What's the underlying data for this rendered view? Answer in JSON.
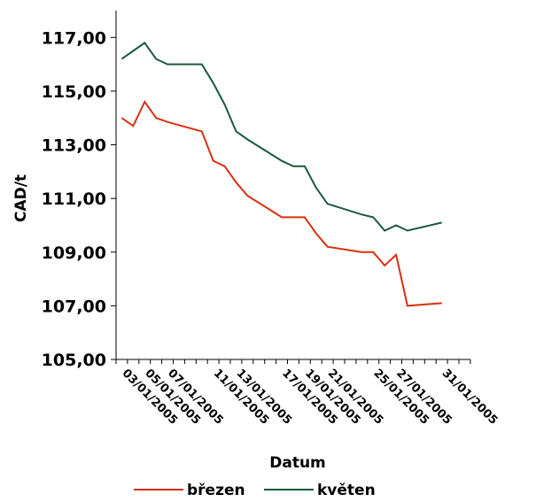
{
  "chart_data": {
    "type": "line",
    "xlabel": "Datum",
    "ylabel": "CAD/t",
    "ylim": [
      105,
      117
    ],
    "yticks": [
      "105,00",
      "107,00",
      "109,00",
      "111,00",
      "113,00",
      "115,00",
      "117,00"
    ],
    "xtick_labels": [
      "03/01/2005",
      "05/01/2005",
      "07/01/2005",
      "11/01/2005",
      "13/01/2005",
      "17/01/2005",
      "19/01/2005",
      "21/01/2005",
      "25/01/2005",
      "27/01/2005",
      "31/01/2005"
    ],
    "grid": false,
    "legend_position": "bottom",
    "x": [
      "03/01/2005",
      "04/01/2005",
      "05/01/2005",
      "06/01/2005",
      "07/01/2005",
      "10/01/2005",
      "11/01/2005",
      "12/01/2005",
      "13/01/2005",
      "14/01/2005",
      "17/01/2005",
      "18/01/2005",
      "19/01/2005",
      "20/01/2005",
      "21/01/2005",
      "24/01/2005",
      "25/01/2005",
      "26/01/2005",
      "27/01/2005",
      "28/01/2005",
      "31/01/2005"
    ],
    "series": [
      {
        "name": "březen",
        "color": "#d93010",
        "values": [
          114.0,
          113.7,
          114.6,
          114.0,
          113.85,
          113.5,
          112.4,
          112.2,
          111.6,
          111.1,
          110.3,
          110.3,
          110.3,
          109.7,
          109.2,
          109.0,
          109.0,
          108.5,
          108.9,
          107.0,
          107.1
        ]
      },
      {
        "name": "květen",
        "color": "#1a5a3c",
        "values": [
          116.2,
          116.5,
          116.8,
          116.2,
          116.0,
          116.0,
          115.3,
          114.5,
          113.5,
          113.2,
          112.4,
          112.2,
          112.2,
          111.4,
          110.8,
          110.4,
          110.3,
          109.8,
          110.0,
          109.8,
          110.1
        ]
      }
    ]
  }
}
